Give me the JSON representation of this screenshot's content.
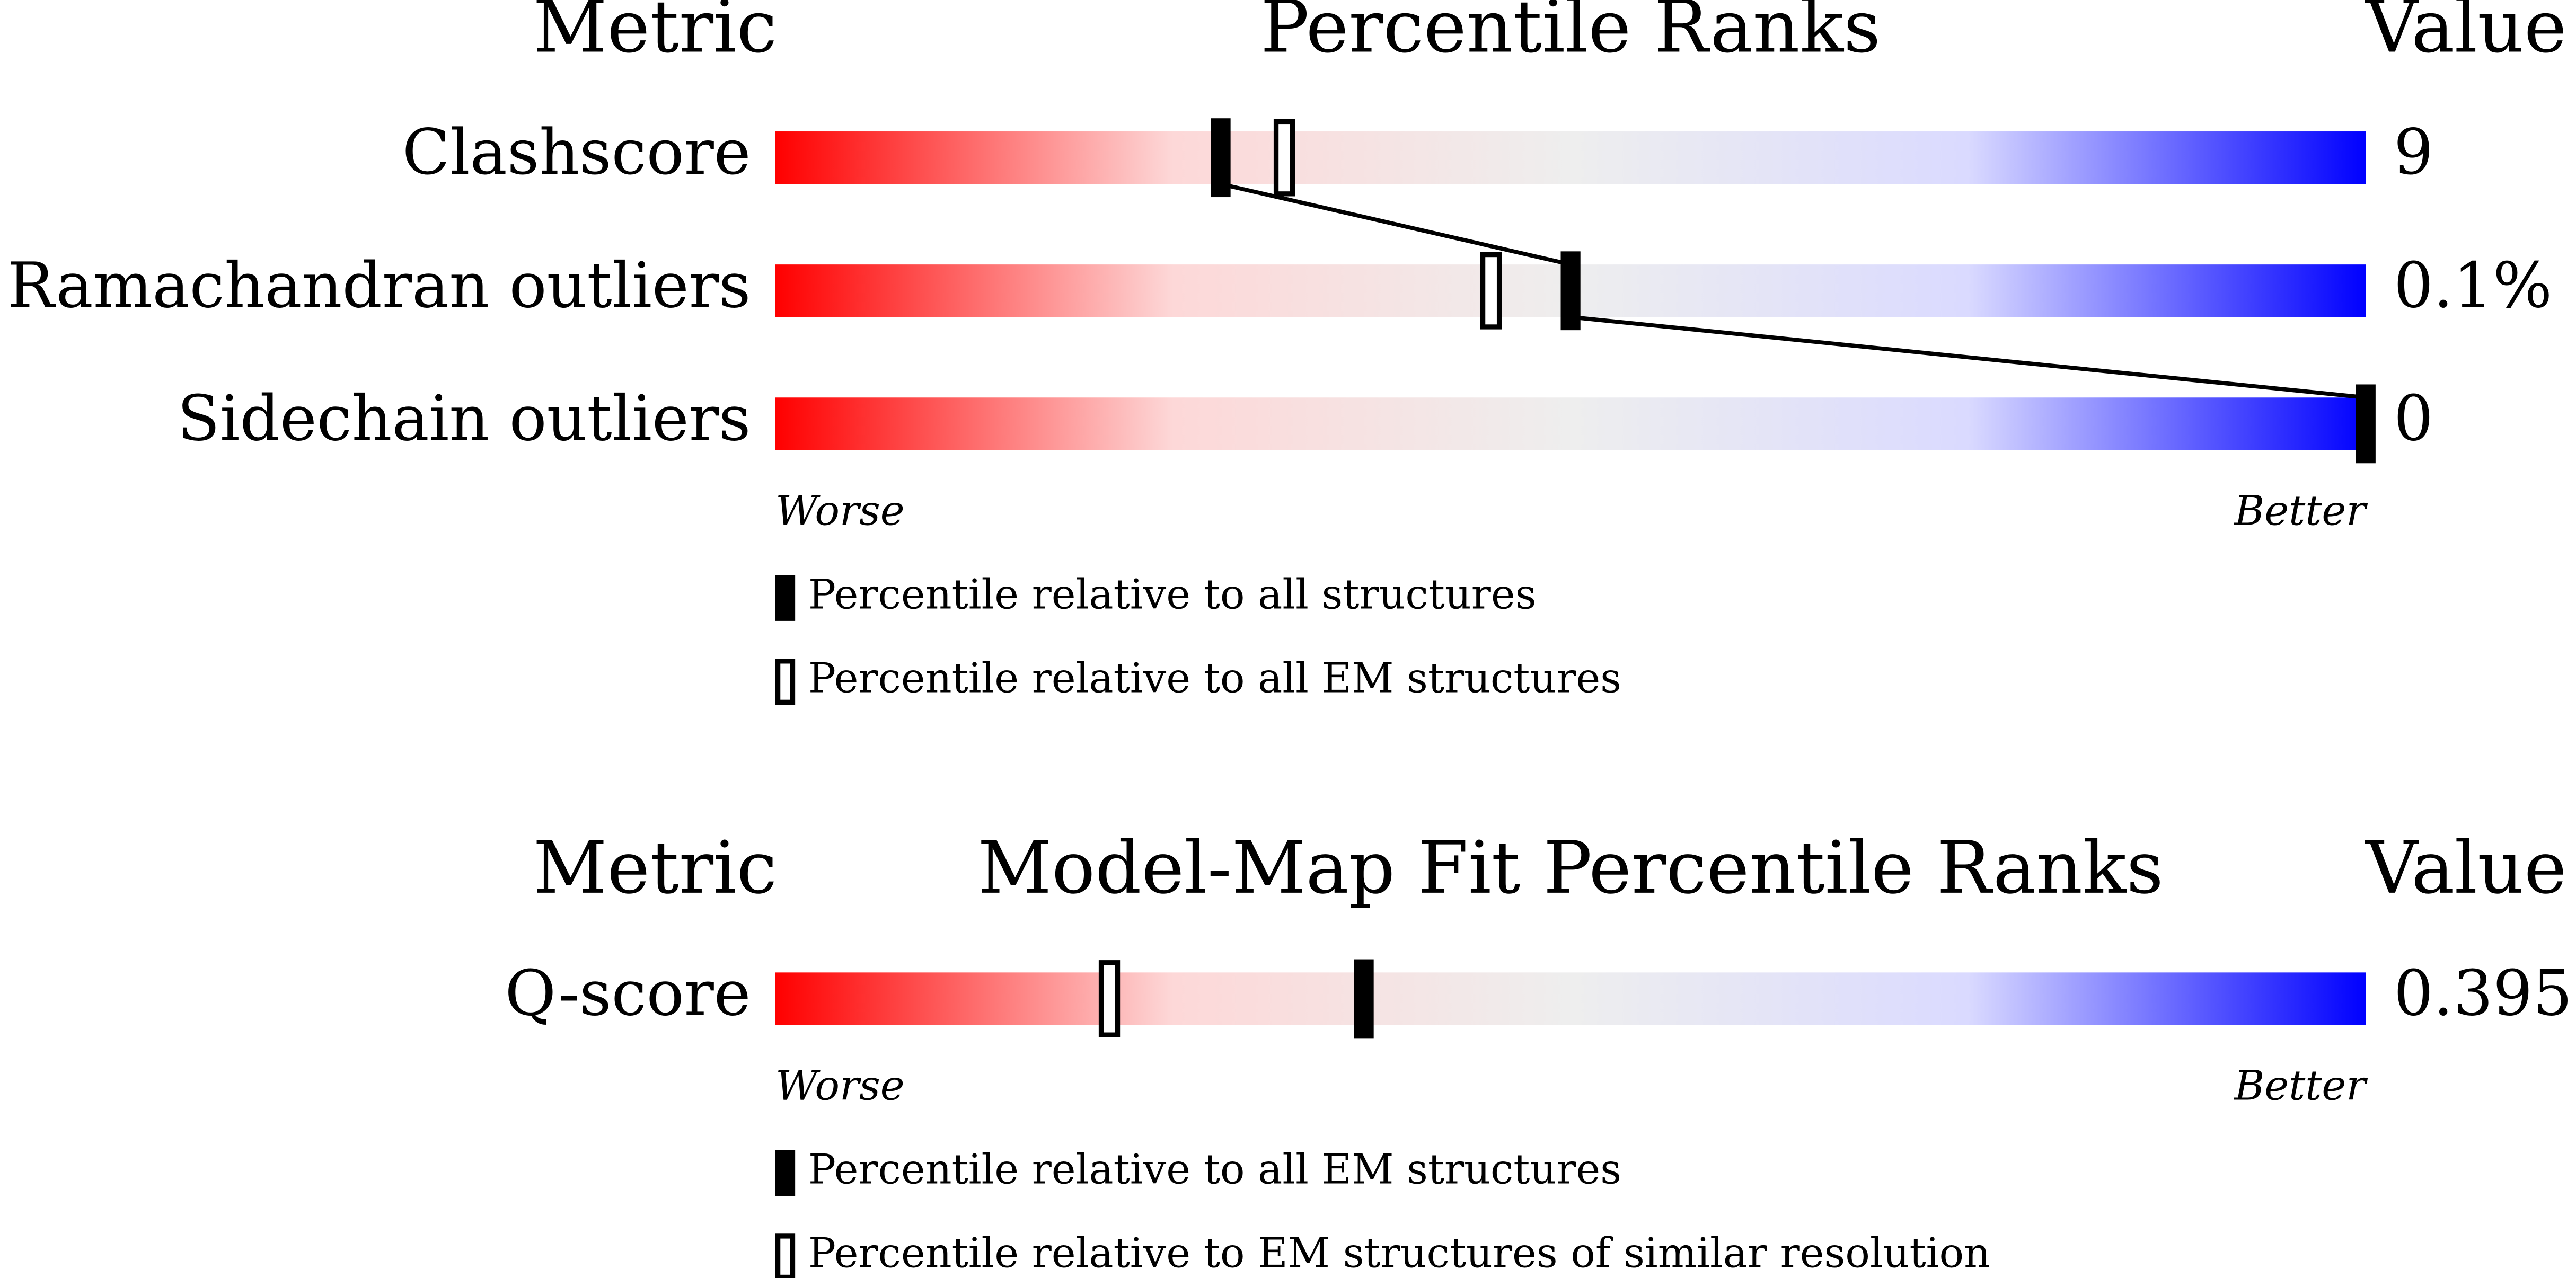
{
  "chart_data": [
    {
      "type": "percentile-slider",
      "header_metric": "Metric",
      "title": "Percentile Ranks",
      "header_value": "Value",
      "categories": [
        "Clashscore",
        "Ramachandran outliers",
        "Sidechain outliers"
      ],
      "value_texts": [
        "9",
        "0.1%",
        "0"
      ],
      "series": [
        {
          "name": "Percentile relative to all structures",
          "style": "filled",
          "color": "#000000",
          "values": [
            28,
            50,
            100
          ]
        },
        {
          "name": "Percentile relative to all EM structures",
          "style": "open",
          "color": "#000000",
          "values": [
            32,
            45,
            null
          ]
        }
      ],
      "connect_series": 0,
      "xlim": [
        0,
        100
      ],
      "low_label": "Worse",
      "high_label": "Better",
      "colors": [
        "#ff0000",
        "#fdd8d8",
        "#eeeeee",
        "#dadaff",
        "#0000ff"
      ]
    },
    {
      "type": "percentile-slider",
      "header_metric": "Metric",
      "title": "Model-Map Fit Percentile Ranks",
      "header_value": "Value",
      "categories": [
        "Q-score"
      ],
      "value_texts": [
        "0.395"
      ],
      "series": [
        {
          "name": "Percentile relative to all EM structures",
          "style": "filled",
          "color": "#000000",
          "values": [
            37
          ]
        },
        {
          "name": "Percentile relative to EM structures of similar resolution",
          "style": "open",
          "color": "#000000",
          "values": [
            21
          ]
        }
      ],
      "connect_series": 0,
      "xlim": [
        0,
        100
      ],
      "low_label": "Worse",
      "high_label": "Better",
      "colors": [
        "#ff0000",
        "#fdd8d8",
        "#eeeeee",
        "#dadaff",
        "#0000ff"
      ]
    }
  ]
}
